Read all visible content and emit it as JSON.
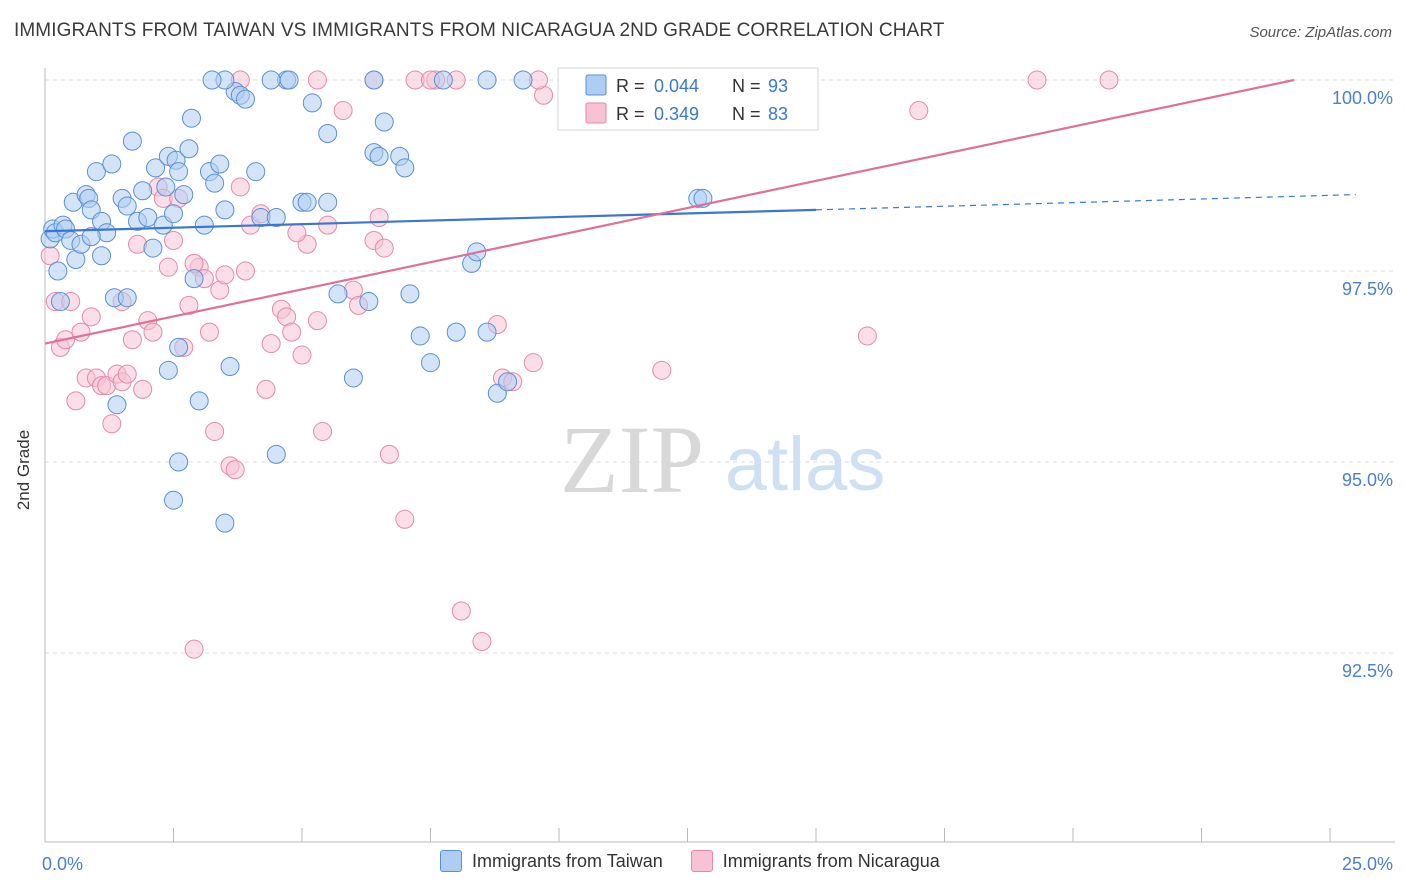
{
  "title": "IMMIGRANTS FROM TAIWAN VS IMMIGRANTS FROM NICARAGUA 2ND GRADE CORRELATION CHART",
  "source": "Source: ZipAtlas.com",
  "watermark": {
    "zip": "ZIP",
    "atlas": "atlas"
  },
  "legend": {
    "r_label": "R =",
    "n_label": "N =",
    "taiwan": {
      "r": "0.044",
      "n": "93"
    },
    "nicaragua": {
      "r": "0.349",
      "n": "83"
    }
  },
  "colors": {
    "taiwan_fill": "#aecdf2",
    "taiwan_stroke": "#5b8fd4",
    "taiwan_line": "#3a78d0",
    "nicaragua_fill": "#f7c2d3",
    "nicaragua_stroke": "#e38aa8",
    "nicaragua_line": "#e0709a",
    "tick_label": "#4a7ed0",
    "grid": "#dddddd"
  },
  "chart_data": {
    "type": "scatter",
    "title": "IMMIGRANTS FROM TAIWAN VS IMMIGRANTS FROM NICARAGUA 2ND GRADE CORRELATION CHART",
    "xlabel": "",
    "ylabel": "2nd Grade",
    "xlim": [
      0,
      25
    ],
    "ylim": [
      90.0,
      100.25
    ],
    "x_tick_labels": [
      "0.0%",
      "25.0%"
    ],
    "y_ticks": [
      100.0,
      97.5,
      95.0,
      92.5
    ],
    "y_tick_labels": [
      "100.0%",
      "97.5%",
      "95.0%",
      "92.5%"
    ],
    "grid": true,
    "legend_position": "top-center",
    "series": [
      {
        "name": "Immigrants from Taiwan",
        "r": 0.044,
        "n": 93,
        "trend": {
          "x": [
            0,
            15
          ],
          "y": [
            98.02,
            98.3
          ],
          "dashed_to": [
            25.5,
            98.5
          ]
        },
        "points": [
          [
            0.1,
            97.92
          ],
          [
            0.15,
            98.05
          ],
          [
            0.2,
            98.0
          ],
          [
            0.25,
            97.5
          ],
          [
            0.3,
            97.1
          ],
          [
            0.35,
            98.1
          ],
          [
            0.4,
            98.05
          ],
          [
            0.5,
            97.9
          ],
          [
            0.55,
            98.4
          ],
          [
            0.6,
            97.65
          ],
          [
            0.7,
            97.85
          ],
          [
            0.8,
            98.5
          ],
          [
            0.85,
            98.45
          ],
          [
            0.9,
            98.3
          ],
          [
            1.0,
            98.8
          ],
          [
            1.1,
            98.15
          ],
          [
            1.2,
            98.0
          ],
          [
            1.3,
            98.9
          ],
          [
            1.35,
            97.15
          ],
          [
            1.5,
            98.45
          ],
          [
            1.6,
            98.35
          ],
          [
            1.7,
            99.2
          ],
          [
            1.8,
            98.15
          ],
          [
            1.9,
            98.55
          ],
          [
            2.0,
            98.2
          ],
          [
            2.1,
            97.8
          ],
          [
            2.15,
            98.85
          ],
          [
            2.3,
            98.1
          ],
          [
            2.35,
            98.6
          ],
          [
            2.4,
            99.0
          ],
          [
            2.5,
            98.25
          ],
          [
            2.55,
            98.95
          ],
          [
            2.6,
            98.8
          ],
          [
            2.7,
            98.5
          ],
          [
            2.8,
            99.1
          ],
          [
            2.85,
            99.5
          ],
          [
            2.9,
            97.4
          ],
          [
            3.0,
            95.8
          ],
          [
            3.1,
            98.1
          ],
          [
            3.2,
            98.8
          ],
          [
            3.3,
            98.65
          ],
          [
            3.4,
            98.9
          ],
          [
            3.5,
            98.3
          ],
          [
            3.6,
            96.25
          ],
          [
            3.7,
            99.85
          ],
          [
            3.8,
            99.8
          ],
          [
            3.9,
            99.75
          ],
          [
            4.1,
            98.8
          ],
          [
            4.2,
            98.2
          ],
          [
            4.5,
            98.2
          ],
          [
            4.7,
            100.0
          ],
          [
            5.0,
            98.4
          ],
          [
            5.1,
            98.4
          ],
          [
            5.2,
            99.7
          ],
          [
            5.5,
            98.4
          ],
          [
            5.7,
            97.2
          ],
          [
            6.3,
            97.1
          ],
          [
            6.4,
            99.05
          ],
          [
            6.5,
            99.0
          ],
          [
            6.6,
            99.45
          ],
          [
            6.9,
            99.0
          ],
          [
            7.0,
            98.85
          ],
          [
            7.3,
            96.65
          ],
          [
            8.0,
            96.7
          ],
          [
            8.3,
            97.6
          ],
          [
            8.4,
            97.75
          ],
          [
            8.6,
            96.7
          ],
          [
            8.8,
            95.9
          ],
          [
            9.0,
            96.05
          ],
          [
            12.7,
            98.45
          ],
          [
            12.8,
            98.45
          ],
          [
            1.4,
            95.75
          ],
          [
            2.6,
            95.0
          ],
          [
            3.5,
            94.2
          ],
          [
            4.5,
            95.1
          ],
          [
            2.5,
            94.5
          ],
          [
            1.6,
            97.15
          ],
          [
            2.4,
            96.2
          ],
          [
            2.6,
            96.5
          ],
          [
            6.0,
            96.1
          ],
          [
            7.1,
            97.2
          ],
          [
            7.5,
            96.3
          ],
          [
            3.5,
            100.0
          ],
          [
            3.25,
            100.0
          ],
          [
            4.75,
            100.0
          ],
          [
            4.4,
            100.0
          ],
          [
            6.4,
            100.0
          ],
          [
            7.75,
            100.0
          ],
          [
            8.6,
            100.0
          ],
          [
            9.3,
            100.0
          ],
          [
            0.9,
            97.95
          ],
          [
            1.1,
            97.7
          ],
          [
            5.5,
            99.3
          ]
        ]
      },
      {
        "name": "Immigrants from Nicaragua",
        "r": 0.349,
        "n": 83,
        "trend": {
          "x": [
            0,
            24.3
          ],
          "y": [
            96.55,
            100.0
          ]
        },
        "points": [
          [
            0.1,
            97.7
          ],
          [
            0.2,
            97.1
          ],
          [
            0.3,
            96.5
          ],
          [
            0.4,
            96.6
          ],
          [
            0.5,
            97.1
          ],
          [
            0.6,
            95.8
          ],
          [
            0.7,
            96.7
          ],
          [
            0.8,
            96.1
          ],
          [
            0.9,
            96.9
          ],
          [
            1.0,
            96.1
          ],
          [
            1.1,
            96.0
          ],
          [
            1.2,
            96.0
          ],
          [
            1.3,
            95.5
          ],
          [
            1.4,
            96.15
          ],
          [
            1.5,
            96.05
          ],
          [
            1.6,
            96.15
          ],
          [
            1.7,
            96.6
          ],
          [
            1.8,
            97.85
          ],
          [
            1.9,
            95.95
          ],
          [
            2.0,
            96.85
          ],
          [
            2.1,
            96.7
          ],
          [
            2.2,
            98.6
          ],
          [
            2.3,
            98.45
          ],
          [
            2.4,
            97.55
          ],
          [
            2.5,
            97.9
          ],
          [
            2.6,
            98.45
          ],
          [
            2.7,
            96.5
          ],
          [
            2.8,
            97.05
          ],
          [
            2.9,
            92.55
          ],
          [
            3.0,
            97.55
          ],
          [
            3.1,
            97.4
          ],
          [
            3.2,
            96.7
          ],
          [
            3.3,
            95.4
          ],
          [
            3.4,
            97.25
          ],
          [
            3.5,
            97.45
          ],
          [
            3.6,
            94.95
          ],
          [
            3.7,
            94.9
          ],
          [
            3.8,
            98.6
          ],
          [
            3.9,
            97.5
          ],
          [
            4.0,
            98.1
          ],
          [
            4.2,
            98.25
          ],
          [
            4.3,
            95.95
          ],
          [
            4.4,
            96.55
          ],
          [
            4.6,
            97.0
          ],
          [
            4.7,
            96.9
          ],
          [
            4.8,
            96.7
          ],
          [
            5.0,
            96.4
          ],
          [
            5.1,
            97.85
          ],
          [
            5.3,
            96.85
          ],
          [
            5.5,
            98.1
          ],
          [
            5.4,
            95.4
          ],
          [
            5.8,
            99.6
          ],
          [
            6.0,
            97.25
          ],
          [
            6.1,
            97.05
          ],
          [
            6.4,
            97.9
          ],
          [
            6.6,
            97.8
          ],
          [
            6.7,
            95.1
          ],
          [
            6.5,
            98.2
          ],
          [
            7.0,
            94.25
          ],
          [
            7.2,
            100.0
          ],
          [
            7.6,
            100.0
          ],
          [
            8.0,
            100.0
          ],
          [
            8.1,
            93.05
          ],
          [
            8.5,
            92.65
          ],
          [
            8.8,
            96.8
          ],
          [
            8.9,
            96.1
          ],
          [
            9.1,
            96.05
          ],
          [
            9.5,
            96.3
          ],
          [
            9.7,
            99.8
          ],
          [
            10.2,
            100.0
          ],
          [
            12.0,
            96.2
          ],
          [
            16.0,
            96.65
          ],
          [
            17.0,
            99.6
          ],
          [
            19.3,
            100.0
          ],
          [
            20.7,
            100.0
          ],
          [
            5.3,
            100.0
          ],
          [
            6.4,
            100.0
          ],
          [
            7.5,
            100.0
          ],
          [
            9.6,
            100.0
          ],
          [
            1.5,
            97.1
          ],
          [
            3.8,
            100.0
          ],
          [
            2.9,
            97.6
          ],
          [
            4.9,
            98.0
          ]
        ]
      }
    ]
  },
  "bottom_legend": {
    "taiwan": "Immigrants from Taiwan",
    "nicaragua": "Immigrants from Nicaragua"
  }
}
